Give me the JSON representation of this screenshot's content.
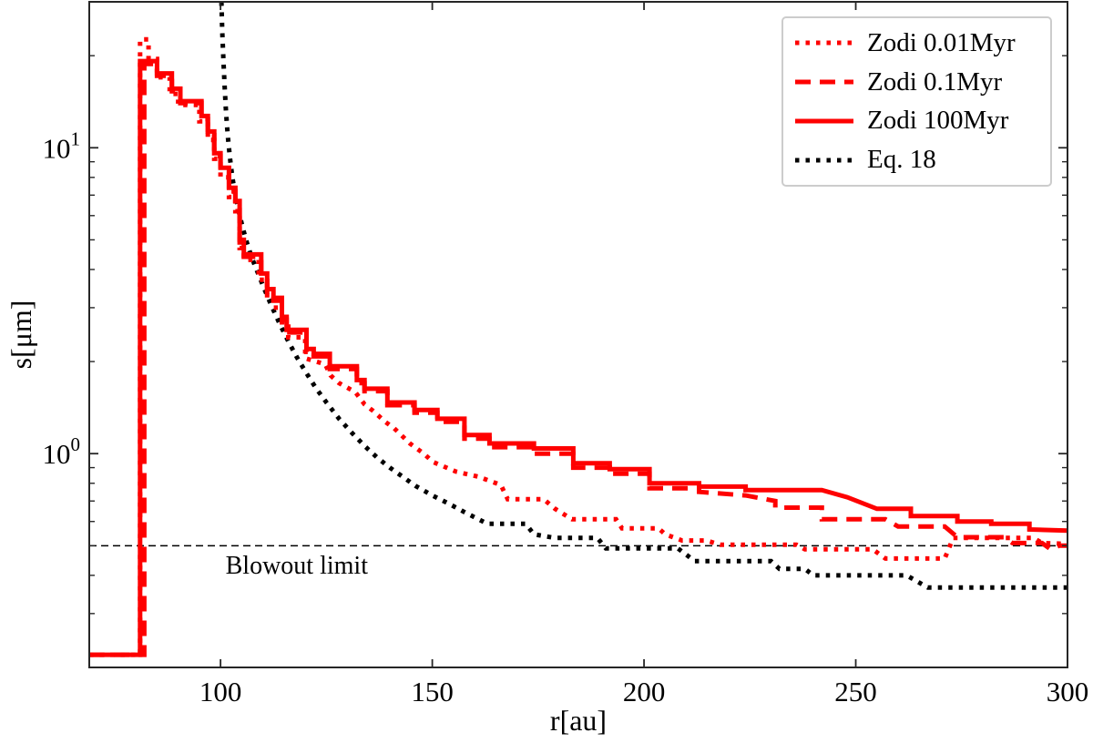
{
  "figure": {
    "xlabel": "r[au]",
    "ylabel": "s[μm]"
  },
  "legend": {
    "items": [
      {
        "label": "Zodi 0.01Myr"
      },
      {
        "label": "Zodi 0.1Myr"
      },
      {
        "label": "Zodi 100Myr"
      },
      {
        "label": "Eq. 18"
      }
    ]
  },
  "chart_data": {
    "type": "line",
    "xlabel": "r[au]",
    "ylabel": "s[μm]",
    "xlim": [
      69,
      300
    ],
    "ylim": [
      0.2,
      30
    ],
    "yscale": "log",
    "grid": false,
    "legend_position": "upper right",
    "x_ticks": [
      {
        "v": 100,
        "label": "100"
      },
      {
        "v": 150,
        "label": "150"
      },
      {
        "v": 200,
        "label": "200"
      },
      {
        "v": 250,
        "label": "250"
      },
      {
        "v": 300,
        "label": "300"
      }
    ],
    "y_ticks_major": [
      {
        "v": 10,
        "base": "10",
        "exp": "1"
      },
      {
        "v": 1,
        "base": "10",
        "exp": "0"
      }
    ],
    "y_ticks_minor": [
      20,
      9,
      8,
      7,
      6,
      5,
      4,
      3,
      2,
      0.9,
      0.8,
      0.7,
      0.6,
      0.5,
      0.4,
      0.3
    ],
    "annotation": {
      "label": "Blowout limit",
      "value": 0.5,
      "label_r": 118,
      "label_s": 0.405,
      "color": "#000000"
    },
    "series": [
      {
        "name": "Zodi 0.01Myr",
        "color": "#fe0000",
        "style": "dotted",
        "z": 2,
        "points": [
          [
            69,
            0.22
          ],
          [
            81,
            0.22
          ],
          [
            81,
            22.6
          ],
          [
            83,
            22.6
          ],
          [
            83,
            19.5
          ],
          [
            85,
            19.5
          ],
          [
            85,
            17.0
          ],
          [
            88,
            17.0
          ],
          [
            88,
            15.0
          ],
          [
            90,
            15.0
          ],
          [
            90,
            13.8
          ],
          [
            95,
            13.8
          ],
          [
            95,
            12.2
          ],
          [
            97,
            12.2
          ],
          [
            97,
            10.6
          ],
          [
            98.5,
            10.6
          ],
          [
            98.5,
            9.2
          ],
          [
            100,
            9.2
          ],
          [
            100,
            8.0
          ],
          [
            102,
            8.0
          ],
          [
            102,
            6.9
          ],
          [
            103.5,
            6.9
          ],
          [
            103.5,
            6.2
          ],
          [
            104.5,
            6.2
          ],
          [
            104.5,
            4.7
          ],
          [
            105.5,
            4.7
          ],
          [
            105.5,
            4.3
          ],
          [
            109,
            4.3
          ],
          [
            109,
            3.7
          ],
          [
            111,
            3.7
          ],
          [
            111,
            3.2
          ],
          [
            112.5,
            3.2
          ],
          [
            112.5,
            3.0
          ],
          [
            114.5,
            3.0
          ],
          [
            114.5,
            2.6
          ],
          [
            116,
            2.6
          ],
          [
            116,
            2.4
          ],
          [
            120,
            2.4
          ],
          [
            120,
            2.05
          ],
          [
            124.7,
            1.96
          ],
          [
            126,
            1.8
          ],
          [
            128,
            1.7
          ],
          [
            131.8,
            1.59
          ],
          [
            134,
            1.45
          ],
          [
            136,
            1.38
          ],
          [
            138.9,
            1.27
          ],
          [
            141,
            1.21
          ],
          [
            144.7,
            1.08
          ],
          [
            148,
            1.0
          ],
          [
            150.1,
            0.94
          ],
          [
            155.5,
            0.874
          ],
          [
            160.9,
            0.84
          ],
          [
            166.2,
            0.79
          ],
          [
            167.8,
            0.71
          ],
          [
            176.3,
            0.71
          ],
          [
            179,
            0.66
          ],
          [
            183,
            0.61
          ],
          [
            193.4,
            0.61
          ],
          [
            194.8,
            0.57
          ],
          [
            203.4,
            0.57
          ],
          [
            205,
            0.545
          ],
          [
            209,
            0.52
          ],
          [
            214.7,
            0.52
          ],
          [
            218,
            0.504
          ],
          [
            236,
            0.504
          ],
          [
            238,
            0.487
          ],
          [
            254,
            0.487
          ],
          [
            257,
            0.454
          ],
          [
            271,
            0.454
          ],
          [
            273,
            0.53
          ],
          [
            292,
            0.53
          ],
          [
            294,
            0.51
          ],
          [
            300,
            0.507
          ]
        ]
      },
      {
        "name": "Zodi 0.1Myr",
        "color": "#fe0000",
        "style": "dashed",
        "z": 3,
        "points": [
          [
            69,
            0.22
          ],
          [
            82,
            0.22
          ],
          [
            82,
            18.8
          ],
          [
            85,
            18.8
          ],
          [
            85,
            17.2
          ],
          [
            88.5,
            17.2
          ],
          [
            88.5,
            15.3
          ],
          [
            90.5,
            15.3
          ],
          [
            90.5,
            14.0
          ],
          [
            95.5,
            14.0
          ],
          [
            95.5,
            12.4
          ],
          [
            97,
            12.4
          ],
          [
            97,
            11.0
          ],
          [
            98.5,
            11.0
          ],
          [
            98.5,
            9.4
          ],
          [
            100,
            9.4
          ],
          [
            100,
            8.4
          ],
          [
            102,
            8.4
          ],
          [
            102,
            7.2
          ],
          [
            103.5,
            7.2
          ],
          [
            103.5,
            6.5
          ],
          [
            104.5,
            6.5
          ],
          [
            104.5,
            4.9
          ],
          [
            105.5,
            4.9
          ],
          [
            105.5,
            4.4
          ],
          [
            109.6,
            4.4
          ],
          [
            109.6,
            3.8
          ],
          [
            111,
            3.8
          ],
          [
            111,
            3.38
          ],
          [
            112.5,
            3.38
          ],
          [
            112.5,
            3.16
          ],
          [
            114.5,
            3.16
          ],
          [
            114.5,
            2.74
          ],
          [
            115.6,
            2.74
          ],
          [
            115.6,
            2.49
          ],
          [
            120.3,
            2.49
          ],
          [
            120.3,
            2.15
          ],
          [
            122,
            2.15
          ],
          [
            122,
            2.08
          ],
          [
            125.8,
            2.08
          ],
          [
            125.8,
            1.89
          ],
          [
            132.2,
            1.89
          ],
          [
            132.2,
            1.7
          ],
          [
            134,
            1.7
          ],
          [
            134,
            1.6
          ],
          [
            139.4,
            1.6
          ],
          [
            139.4,
            1.44
          ],
          [
            145.8,
            1.44
          ],
          [
            145.8,
            1.36
          ],
          [
            151.2,
            1.36
          ],
          [
            151.2,
            1.27
          ],
          [
            157.6,
            1.27
          ],
          [
            157.6,
            1.12
          ],
          [
            163.5,
            1.12
          ],
          [
            163.5,
            1.05
          ],
          [
            174,
            1.05
          ],
          [
            174,
            1.0
          ],
          [
            183.3,
            1.0
          ],
          [
            183.3,
            0.9
          ],
          [
            191.9,
            0.9
          ],
          [
            191.9,
            0.86
          ],
          [
            201.3,
            0.86
          ],
          [
            201.3,
            0.77
          ],
          [
            213,
            0.77
          ],
          [
            213,
            0.75
          ],
          [
            224,
            0.73
          ],
          [
            231,
            0.7
          ],
          [
            231,
            0.666
          ],
          [
            242,
            0.666
          ],
          [
            242,
            0.61
          ],
          [
            257,
            0.61
          ],
          [
            260,
            0.578
          ],
          [
            271,
            0.578
          ],
          [
            274,
            0.533
          ],
          [
            285,
            0.533
          ],
          [
            287,
            0.51
          ],
          [
            294,
            0.51
          ],
          [
            296,
            0.487
          ],
          [
            298,
            0.5
          ],
          [
            300,
            0.5
          ]
        ]
      },
      {
        "name": "Zodi 100Myr",
        "color": "#fe0000",
        "style": "solid",
        "z": 4,
        "points": [
          [
            69,
            0.22
          ],
          [
            81,
            0.22
          ],
          [
            81,
            19.2
          ],
          [
            85,
            19.2
          ],
          [
            85,
            17.5
          ],
          [
            88.5,
            17.5
          ],
          [
            88.5,
            15.6
          ],
          [
            90.5,
            15.6
          ],
          [
            90.5,
            14.2
          ],
          [
            95.5,
            14.2
          ],
          [
            95.5,
            12.7
          ],
          [
            97,
            12.7
          ],
          [
            97,
            11.3
          ],
          [
            98.5,
            11.3
          ],
          [
            98.5,
            9.6
          ],
          [
            100,
            9.6
          ],
          [
            100,
            8.6
          ],
          [
            102,
            8.6
          ],
          [
            102,
            7.4
          ],
          [
            103.5,
            7.4
          ],
          [
            103.5,
            6.7
          ],
          [
            104.5,
            6.7
          ],
          [
            104.5,
            5.0
          ],
          [
            105.5,
            5.0
          ],
          [
            105.5,
            4.48
          ],
          [
            109.6,
            4.48
          ],
          [
            109.6,
            3.88
          ],
          [
            111,
            3.88
          ],
          [
            111,
            3.45
          ],
          [
            112.5,
            3.45
          ],
          [
            112.5,
            3.23
          ],
          [
            114.5,
            3.23
          ],
          [
            114.5,
            2.8
          ],
          [
            115.6,
            2.8
          ],
          [
            115.6,
            2.54
          ],
          [
            120.3,
            2.54
          ],
          [
            120.3,
            2.2
          ],
          [
            122,
            2.2
          ],
          [
            122,
            2.12
          ],
          [
            125.8,
            2.12
          ],
          [
            125.8,
            1.93
          ],
          [
            132.2,
            1.93
          ],
          [
            132.2,
            1.74
          ],
          [
            134,
            1.74
          ],
          [
            134,
            1.63
          ],
          [
            139.4,
            1.63
          ],
          [
            139.4,
            1.47
          ],
          [
            145.8,
            1.47
          ],
          [
            145.8,
            1.39
          ],
          [
            151.2,
            1.39
          ],
          [
            151.2,
            1.3
          ],
          [
            157.6,
            1.3
          ],
          [
            157.6,
            1.15
          ],
          [
            163.5,
            1.15
          ],
          [
            163.5,
            1.08
          ],
          [
            174,
            1.08
          ],
          [
            174,
            1.04
          ],
          [
            183.3,
            1.04
          ],
          [
            183.3,
            0.93
          ],
          [
            191.9,
            0.93
          ],
          [
            191.9,
            0.89
          ],
          [
            201.3,
            0.89
          ],
          [
            201.3,
            0.8
          ],
          [
            213,
            0.8
          ],
          [
            213,
            0.78
          ],
          [
            224,
            0.78
          ],
          [
            224,
            0.76
          ],
          [
            242,
            0.76
          ],
          [
            248,
            0.72
          ],
          [
            255,
            0.66
          ],
          [
            263,
            0.66
          ],
          [
            263,
            0.625
          ],
          [
            274,
            0.625
          ],
          [
            274,
            0.6
          ],
          [
            282,
            0.6
          ],
          [
            282,
            0.59
          ],
          [
            291,
            0.59
          ],
          [
            291,
            0.565
          ],
          [
            300,
            0.56
          ]
        ]
      },
      {
        "name": "Eq. 18",
        "color": "#000000",
        "style": "dotted",
        "z": 1,
        "points": [
          [
            100.2,
            30
          ],
          [
            100.4,
            24
          ],
          [
            100.7,
            19
          ],
          [
            101,
            15.5
          ],
          [
            101.3,
            13
          ],
          [
            101.7,
            11
          ],
          [
            102.2,
            9.3
          ],
          [
            102.8,
            8.0
          ],
          [
            103.5,
            7.0
          ],
          [
            104.3,
            6.2
          ],
          [
            105.2,
            5.5
          ],
          [
            106.2,
            4.9
          ],
          [
            107.3,
            4.4
          ],
          [
            108.5,
            4.0
          ],
          [
            110,
            3.55
          ],
          [
            112,
            3.05
          ],
          [
            114,
            2.65
          ],
          [
            116,
            2.33
          ],
          [
            118,
            2.07
          ],
          [
            120,
            1.86
          ],
          [
            122.5,
            1.64
          ],
          [
            125,
            1.47
          ],
          [
            128,
            1.3
          ],
          [
            131,
            1.17
          ],
          [
            134,
            1.06
          ],
          [
            137,
            0.97
          ],
          [
            140,
            0.9
          ],
          [
            143,
            0.84
          ],
          [
            146,
            0.785
          ],
          [
            150,
            0.73
          ],
          [
            154,
            0.685
          ],
          [
            157.6,
            0.644
          ],
          [
            163,
            0.59
          ],
          [
            172,
            0.59
          ],
          [
            174,
            0.545
          ],
          [
            179,
            0.53
          ],
          [
            189,
            0.53
          ],
          [
            191,
            0.49
          ],
          [
            208,
            0.49
          ],
          [
            212,
            0.445
          ],
          [
            230,
            0.445
          ],
          [
            232,
            0.42
          ],
          [
            238,
            0.42
          ],
          [
            240,
            0.4
          ],
          [
            262,
            0.4
          ],
          [
            267,
            0.365
          ],
          [
            300,
            0.365
          ]
        ]
      }
    ]
  }
}
